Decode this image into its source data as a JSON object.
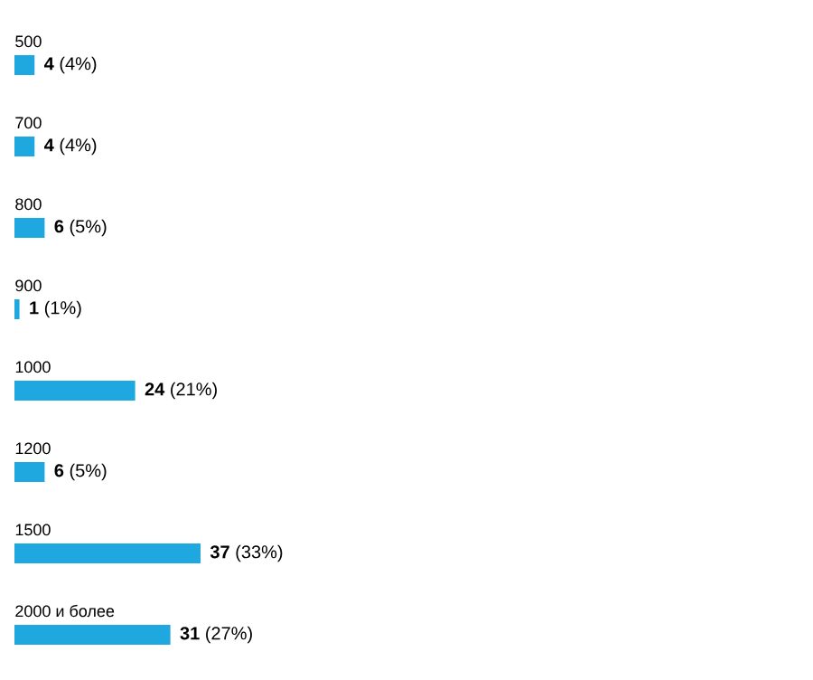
{
  "chart_data": {
    "type": "bar",
    "orientation": "horizontal",
    "categories": [
      "500",
      "700",
      "800",
      "900",
      "1000",
      "1200",
      "1500",
      "2000 и более"
    ],
    "values": [
      4,
      4,
      6,
      1,
      24,
      6,
      37,
      31
    ],
    "value_labels": [
      "**4** (4%)",
      "**4** (4%)",
      "**6** (5%)",
      "**1** (1%)",
      "**24** (21%)",
      "**6** (5%)",
      "**37** (33%)",
      "**31** (27%)"
    ],
    "color": "#1fa8e0"
  }
}
